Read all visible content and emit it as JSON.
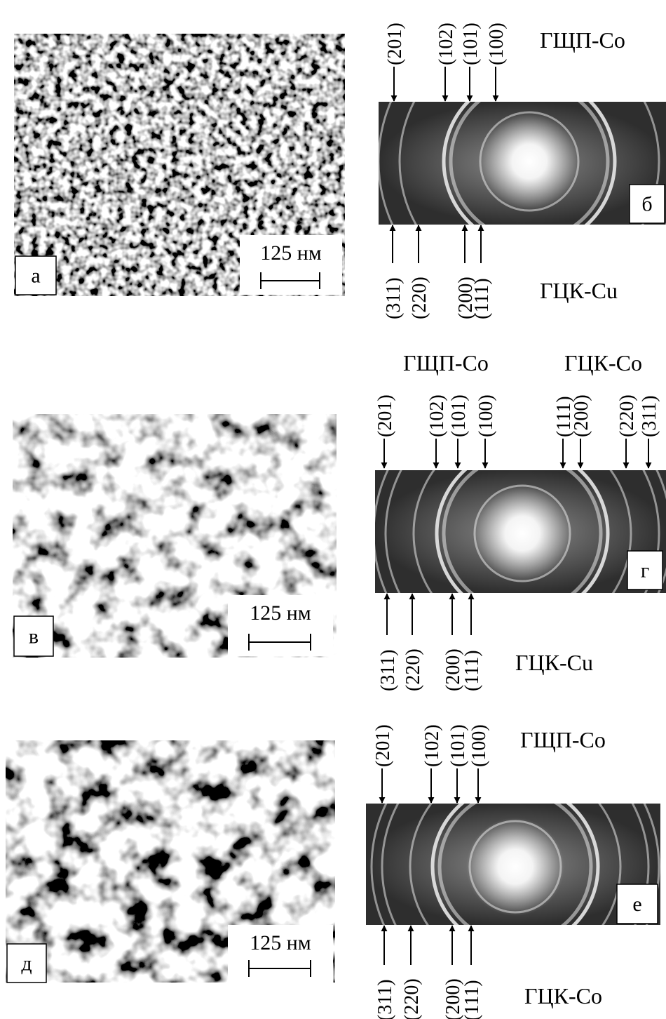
{
  "panels": [
    {
      "micrograph": {
        "label": "а",
        "scale_bar": "125 нм"
      },
      "diffraction": {
        "label": "б",
        "top": [
          {
            "phase": "ГЩП-Co",
            "reflections": [
              "(201)",
              "(102)",
              "(101)",
              "(100)"
            ]
          }
        ],
        "bottom": [
          {
            "phase": "ГЦК-Cu",
            "reflections": [
              "(311)",
              "(220)",
              "(200)",
              "(111)"
            ]
          }
        ]
      }
    },
    {
      "micrograph": {
        "label": "в",
        "scale_bar": "125 нм"
      },
      "diffraction": {
        "label": "г",
        "top": [
          {
            "phase": "ГЩП-Co",
            "reflections": [
              "(201)",
              "(102)",
              "(101)",
              "(100)"
            ]
          },
          {
            "phase": "ГЦК-Co",
            "reflections": [
              "(111)",
              "(200)",
              "(220)",
              "(311)"
            ]
          }
        ],
        "bottom": [
          {
            "phase": "ГЦК-Cu",
            "reflections": [
              "(311)",
              "(220)",
              "(200)",
              "(111)"
            ]
          }
        ]
      }
    },
    {
      "micrograph": {
        "label": "д",
        "scale_bar": "125 нм"
      },
      "diffraction": {
        "label": "е",
        "top": [
          {
            "phase": "ГЩП-Co",
            "reflections": [
              "(201)",
              "(102)",
              "(101)",
              "(100)"
            ]
          }
        ],
        "bottom": [
          {
            "phase": "ГЦК-Co",
            "reflections": [
              "(311)",
              "(220)",
              "(200)",
              "(111)"
            ]
          }
        ]
      }
    }
  ]
}
